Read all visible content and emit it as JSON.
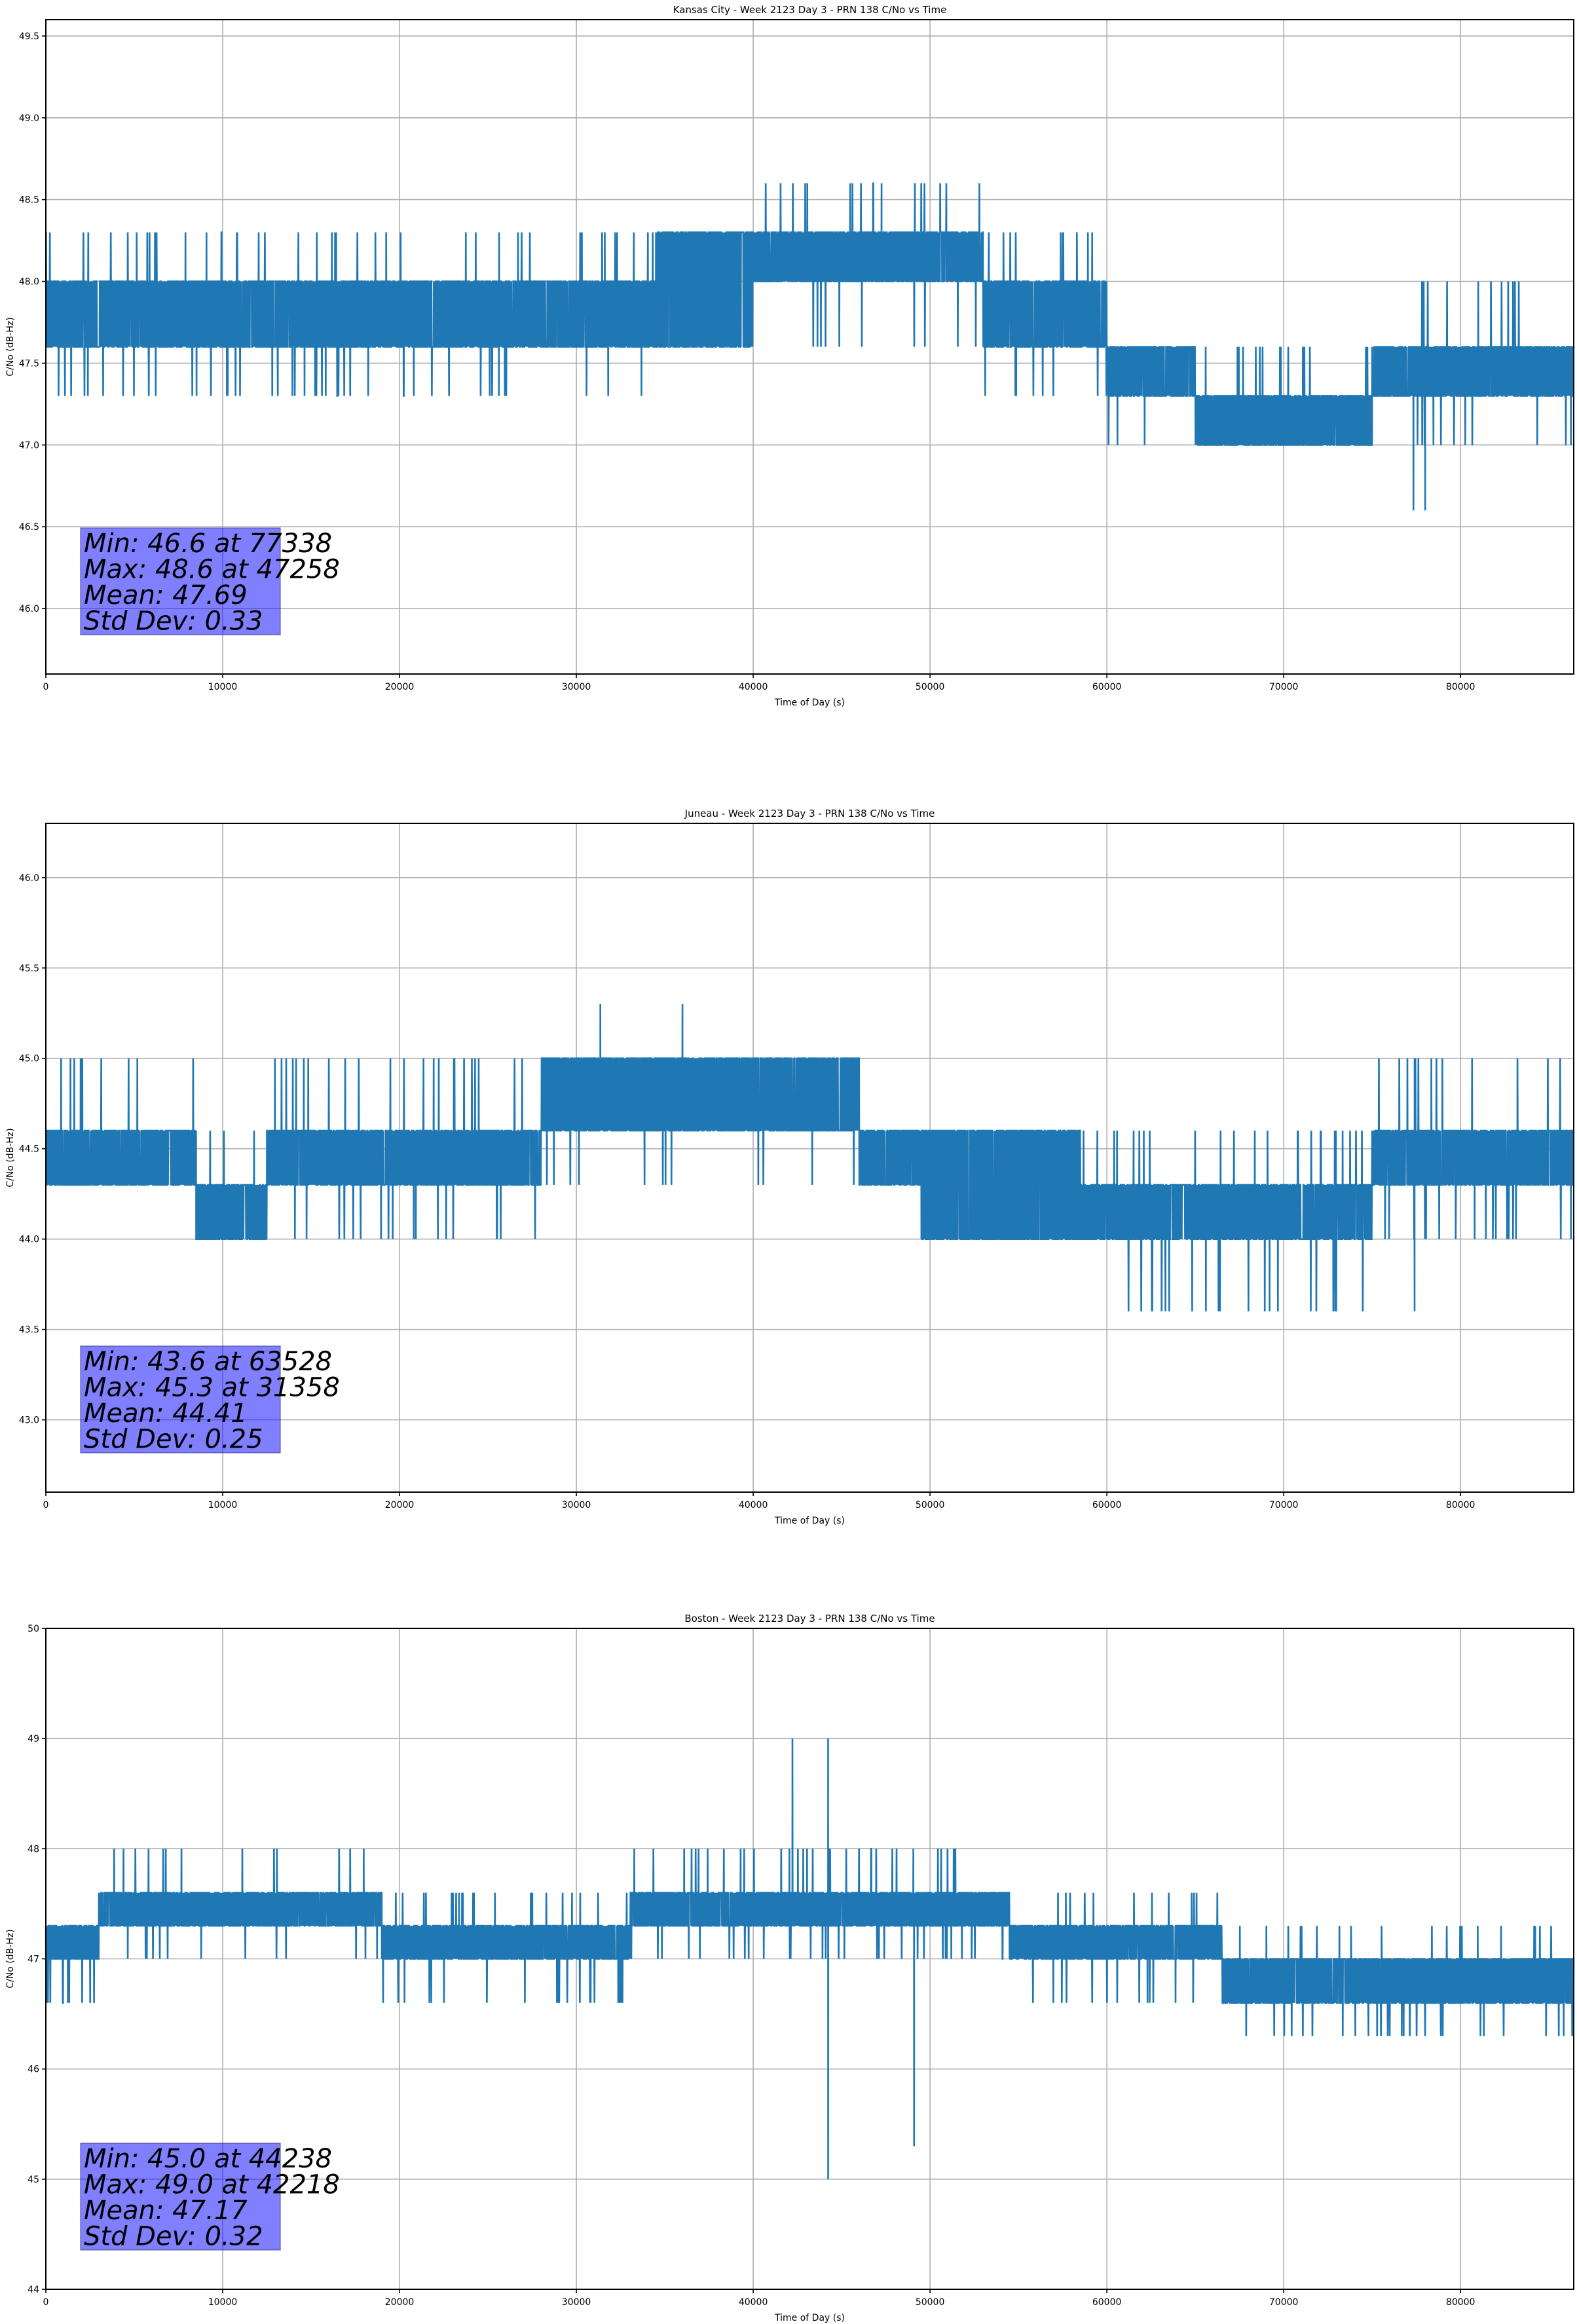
{
  "chart_data": [
    {
      "type": "line",
      "title": "Kansas City - Week 2123 Day 3 - PRN 138 C/No vs Time",
      "xlabel": "Time of Day (s)",
      "ylabel": "C/No (dB-Hz)",
      "xlim": [
        0,
        86400
      ],
      "ylim": [
        45.6,
        49.6
      ],
      "xticks": [
        0,
        10000,
        20000,
        30000,
        40000,
        50000,
        60000,
        70000,
        80000
      ],
      "xtick_labels": [
        "0",
        "10000",
        "20000",
        "30000",
        "40000",
        "50000",
        "60000",
        "70000",
        "80000"
      ],
      "yticks": [
        46.0,
        46.5,
        47.0,
        47.5,
        48.0,
        48.5,
        49.0,
        49.5
      ],
      "ytick_labels": [
        "46.0",
        "46.5",
        "47.0",
        "47.5",
        "48.0",
        "48.5",
        "49.0",
        "49.5"
      ],
      "grid": true,
      "series_color": "#1f77b4",
      "series": [
        {
          "name": "C/No",
          "quantization": 0.3,
          "segments": [
            {
              "x0": 0,
              "x1": 34500,
              "low": 47.6,
              "high": 48.0,
              "rare_low": 47.3,
              "rare_high": 48.3
            },
            {
              "x0": 34500,
              "x1": 40000,
              "low": 47.6,
              "high": 48.3,
              "rare_low": 47.6,
              "rare_high": 48.3
            },
            {
              "x0": 40000,
              "x1": 53000,
              "low": 48.0,
              "high": 48.3,
              "rare_low": 47.6,
              "rare_high": 48.6
            },
            {
              "x0": 53000,
              "x1": 60000,
              "low": 47.6,
              "high": 48.0,
              "rare_low": 47.3,
              "rare_high": 48.3
            },
            {
              "x0": 60000,
              "x1": 65000,
              "low": 47.3,
              "high": 47.6,
              "rare_low": 47.0,
              "rare_high": 47.6
            },
            {
              "x0": 65000,
              "x1": 75000,
              "low": 47.0,
              "high": 47.3,
              "rare_low": 47.0,
              "rare_high": 47.6
            },
            {
              "x0": 75000,
              "x1": 86400,
              "low": 47.3,
              "high": 47.6,
              "rare_low": 47.0,
              "rare_high": 48.0
            }
          ],
          "extremes": [
            {
              "x": 77338,
              "y": 46.6
            },
            {
              "x": 78000,
              "y": 46.6
            },
            {
              "x": 47258,
              "y": 48.6
            }
          ]
        }
      ],
      "annotation": {
        "min": "Min: 46.6 at 77338",
        "max": "Max: 48.6 at 47258",
        "mean": "Mean: 47.69",
        "std": "Std Dev: 0.33"
      }
    },
    {
      "type": "line",
      "title": "Juneau - Week 2123 Day 3 - PRN 138 C/No vs Time",
      "xlabel": "Time of Day (s)",
      "ylabel": "C/No (dB-Hz)",
      "xlim": [
        0,
        86400
      ],
      "ylim": [
        42.6,
        46.3
      ],
      "xticks": [
        0,
        10000,
        20000,
        30000,
        40000,
        50000,
        60000,
        70000,
        80000
      ],
      "xtick_labels": [
        "0",
        "10000",
        "20000",
        "30000",
        "40000",
        "50000",
        "60000",
        "70000",
        "80000"
      ],
      "yticks": [
        43.0,
        43.5,
        44.0,
        44.5,
        45.0,
        45.5,
        46.0
      ],
      "ytick_labels": [
        "43.0",
        "43.5",
        "44.0",
        "44.5",
        "45.0",
        "45.5",
        "46.0"
      ],
      "grid": true,
      "series_color": "#1f77b4",
      "series": [
        {
          "name": "C/No",
          "quantization": 0.3,
          "segments": [
            {
              "x0": 0,
              "x1": 8500,
              "low": 44.3,
              "high": 44.6,
              "rare_low": 44.3,
              "rare_high": 45.0
            },
            {
              "x0": 8500,
              "x1": 12500,
              "low": 44.0,
              "high": 44.3,
              "rare_low": 44.0,
              "rare_high": 44.6
            },
            {
              "x0": 12500,
              "x1": 28000,
              "low": 44.3,
              "high": 44.6,
              "rare_low": 44.0,
              "rare_high": 45.0
            },
            {
              "x0": 28000,
              "x1": 46000,
              "low": 44.6,
              "high": 45.0,
              "rare_low": 44.3,
              "rare_high": 45.0
            },
            {
              "x0": 46000,
              "x1": 49500,
              "low": 44.3,
              "high": 44.6,
              "rare_low": 44.3,
              "rare_high": 44.6
            },
            {
              "x0": 49500,
              "x1": 58500,
              "low": 44.0,
              "high": 44.6,
              "rare_low": 44.0,
              "rare_high": 44.6
            },
            {
              "x0": 58500,
              "x1": 75000,
              "low": 44.0,
              "high": 44.3,
              "rare_low": 43.6,
              "rare_high": 44.6
            },
            {
              "x0": 75000,
              "x1": 86400,
              "low": 44.3,
              "high": 44.6,
              "rare_low": 44.0,
              "rare_high": 45.0
            }
          ],
          "extremes": [
            {
              "x": 31358,
              "y": 45.3
            },
            {
              "x": 36000,
              "y": 45.3
            },
            {
              "x": 63528,
              "y": 43.6
            },
            {
              "x": 65600,
              "y": 43.6
            },
            {
              "x": 69200,
              "y": 43.6
            },
            {
              "x": 77400,
              "y": 43.6
            }
          ]
        }
      ],
      "annotation": {
        "min": "Min: 43.6 at 63528",
        "max": "Max: 45.3 at 31358",
        "mean": "Mean: 44.41",
        "std": "Std Dev: 0.25"
      }
    },
    {
      "type": "line",
      "title": "Boston - Week 2123 Day 3 - PRN 138 C/No vs Time",
      "xlabel": "Time of Day (s)",
      "ylabel": "C/No (dB-Hz)",
      "xlim": [
        0,
        86400
      ],
      "ylim": [
        44,
        50
      ],
      "xticks": [
        0,
        10000,
        20000,
        30000,
        40000,
        50000,
        60000,
        70000,
        80000
      ],
      "xtick_labels": [
        "0",
        "10000",
        "20000",
        "30000",
        "40000",
        "50000",
        "60000",
        "70000",
        "80000"
      ],
      "yticks": [
        44,
        45,
        46,
        47,
        48,
        49,
        50
      ],
      "ytick_labels": [
        "44",
        "45",
        "46",
        "47",
        "48",
        "49",
        "50"
      ],
      "grid": true,
      "series_color": "#1f77b4",
      "series": [
        {
          "name": "C/No",
          "quantization": 0.3,
          "segments": [
            {
              "x0": 0,
              "x1": 3000,
              "low": 47.0,
              "high": 47.3,
              "rare_low": 46.6,
              "rare_high": 47.3
            },
            {
              "x0": 3000,
              "x1": 19000,
              "low": 47.3,
              "high": 47.6,
              "rare_low": 47.0,
              "rare_high": 48.0
            },
            {
              "x0": 19000,
              "x1": 33000,
              "low": 47.0,
              "high": 47.3,
              "rare_low": 46.6,
              "rare_high": 47.6
            },
            {
              "x0": 33000,
              "x1": 54500,
              "low": 47.3,
              "high": 47.6,
              "rare_low": 47.0,
              "rare_high": 48.0
            },
            {
              "x0": 54500,
              "x1": 66500,
              "low": 47.0,
              "high": 47.3,
              "rare_low": 46.6,
              "rare_high": 47.6
            },
            {
              "x0": 66500,
              "x1": 86400,
              "low": 46.6,
              "high": 47.0,
              "rare_low": 46.3,
              "rare_high": 47.3
            }
          ],
          "extremes": [
            {
              "x": 42218,
              "y": 49.0
            },
            {
              "x": 44238,
              "y": 49.0
            },
            {
              "x": 44238,
              "y": 45.0
            },
            {
              "x": 49100,
              "y": 45.3
            }
          ]
        }
      ],
      "annotation": {
        "min": "Min: 45.0 at 44238",
        "max": "Max: 49.0 at 42218",
        "mean": "Mean: 47.17",
        "std": "Std Dev: 0.32"
      }
    }
  ]
}
